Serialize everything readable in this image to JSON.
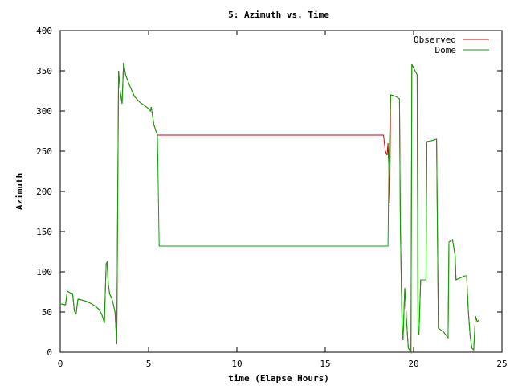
{
  "chart_data": {
    "type": "line",
    "title": "5: Azimuth vs. Time",
    "xlabel": "time (Elapse Hours)",
    "ylabel": "Azimuth",
    "xlim": [
      0,
      25
    ],
    "ylim": [
      0,
      400
    ],
    "x_ticks": [
      0,
      5,
      10,
      15,
      20,
      25
    ],
    "y_ticks": [
      0,
      50,
      100,
      150,
      200,
      250,
      300,
      350,
      400
    ],
    "grid": false,
    "legend_position": "top-right",
    "series": [
      {
        "name": "Observed",
        "color": "#cc0000",
        "points": [
          [
            0.05,
            60
          ],
          [
            0.3,
            59
          ],
          [
            0.4,
            76
          ],
          [
            0.55,
            74
          ],
          [
            0.7,
            73
          ],
          [
            0.8,
            51
          ],
          [
            0.9,
            48
          ],
          [
            1.0,
            66
          ],
          [
            1.2,
            65
          ],
          [
            1.5,
            63
          ],
          [
            1.8,
            60
          ],
          [
            2.0,
            57
          ],
          [
            2.2,
            53
          ],
          [
            2.35,
            47
          ],
          [
            2.45,
            40
          ],
          [
            2.5,
            36
          ],
          [
            2.55,
            75
          ],
          [
            2.6,
            110
          ],
          [
            2.65,
            112
          ],
          [
            2.72,
            85
          ],
          [
            2.8,
            72
          ],
          [
            2.9,
            68
          ],
          [
            3.0,
            60
          ],
          [
            3.1,
            50
          ],
          [
            3.15,
            30
          ],
          [
            3.2,
            10
          ],
          [
            3.3,
            350
          ],
          [
            3.4,
            323
          ],
          [
            3.5,
            309
          ],
          [
            3.58,
            360
          ],
          [
            3.7,
            345
          ],
          [
            3.9,
            333
          ],
          [
            4.2,
            318
          ],
          [
            4.5,
            311
          ],
          [
            5.0,
            303
          ],
          [
            5.1,
            300
          ],
          [
            5.15,
            305
          ],
          [
            5.3,
            283
          ],
          [
            5.4,
            276
          ],
          [
            5.5,
            270
          ],
          [
            5.85,
            270
          ],
          [
            18.3,
            270
          ],
          [
            18.4,
            250
          ],
          [
            18.5,
            245
          ],
          [
            18.55,
            260
          ],
          [
            18.6,
            230
          ],
          [
            18.65,
            185
          ],
          [
            18.7,
            320
          ],
          [
            19.0,
            318
          ],
          [
            19.2,
            315
          ],
          [
            19.25,
            160
          ],
          [
            19.3,
            90
          ],
          [
            19.35,
            30
          ],
          [
            19.4,
            15
          ],
          [
            19.5,
            80
          ],
          [
            19.6,
            40
          ],
          [
            19.7,
            5
          ],
          [
            19.8,
            2
          ],
          [
            19.85,
            0
          ],
          [
            19.9,
            358
          ],
          [
            20.2,
            345
          ],
          [
            20.25,
            25
          ],
          [
            20.3,
            22
          ],
          [
            20.4,
            90
          ],
          [
            20.5,
            90
          ],
          [
            20.7,
            90
          ],
          [
            20.75,
            262
          ],
          [
            21.0,
            263
          ],
          [
            21.3,
            265
          ],
          [
            21.4,
            30
          ],
          [
            21.7,
            25
          ],
          [
            21.95,
            18
          ],
          [
            22.0,
            137
          ],
          [
            22.2,
            140
          ],
          [
            22.35,
            120
          ],
          [
            22.4,
            90
          ],
          [
            22.6,
            92
          ],
          [
            22.9,
            95
          ],
          [
            23.0,
            95
          ],
          [
            23.1,
            50
          ],
          [
            23.2,
            20
          ],
          [
            23.3,
            5
          ],
          [
            23.4,
            3
          ],
          [
            23.5,
            45
          ],
          [
            23.6,
            38
          ],
          [
            23.7,
            40
          ]
        ]
      },
      {
        "name": "Dome",
        "color": "#00aa00",
        "points": [
          [
            0.05,
            60
          ],
          [
            0.3,
            59
          ],
          [
            0.4,
            76
          ],
          [
            0.55,
            74
          ],
          [
            0.7,
            73
          ],
          [
            0.8,
            51
          ],
          [
            0.9,
            48
          ],
          [
            1.0,
            66
          ],
          [
            1.2,
            65
          ],
          [
            1.5,
            63
          ],
          [
            1.8,
            60
          ],
          [
            2.0,
            57
          ],
          [
            2.2,
            53
          ],
          [
            2.35,
            47
          ],
          [
            2.45,
            40
          ],
          [
            2.5,
            36
          ],
          [
            2.55,
            75
          ],
          [
            2.6,
            110
          ],
          [
            2.65,
            112
          ],
          [
            2.72,
            85
          ],
          [
            2.8,
            72
          ],
          [
            2.9,
            68
          ],
          [
            3.0,
            60
          ],
          [
            3.1,
            50
          ],
          [
            3.15,
            30
          ],
          [
            3.2,
            10
          ],
          [
            3.3,
            350
          ],
          [
            3.4,
            323
          ],
          [
            3.5,
            309
          ],
          [
            3.58,
            360
          ],
          [
            3.7,
            345
          ],
          [
            3.9,
            333
          ],
          [
            4.2,
            318
          ],
          [
            4.5,
            311
          ],
          [
            5.0,
            303
          ],
          [
            5.1,
            300
          ],
          [
            5.15,
            305
          ],
          [
            5.3,
            283
          ],
          [
            5.4,
            276
          ],
          [
            5.5,
            270
          ],
          [
            5.6,
            132
          ],
          [
            18.55,
            132
          ],
          [
            18.6,
            230
          ],
          [
            18.7,
            320
          ],
          [
            19.0,
            318
          ],
          [
            19.2,
            315
          ],
          [
            19.25,
            160
          ],
          [
            19.3,
            90
          ],
          [
            19.35,
            30
          ],
          [
            19.4,
            15
          ],
          [
            19.5,
            80
          ],
          [
            19.6,
            40
          ],
          [
            19.7,
            5
          ],
          [
            19.8,
            2
          ],
          [
            19.85,
            0
          ],
          [
            19.9,
            358
          ],
          [
            20.2,
            345
          ],
          [
            20.25,
            25
          ],
          [
            20.3,
            22
          ],
          [
            20.4,
            90
          ],
          [
            20.5,
            90
          ],
          [
            20.7,
            90
          ],
          [
            20.75,
            262
          ],
          [
            21.0,
            263
          ],
          [
            21.3,
            265
          ],
          [
            21.4,
            30
          ],
          [
            21.7,
            25
          ],
          [
            21.95,
            18
          ],
          [
            22.0,
            137
          ],
          [
            22.2,
            140
          ],
          [
            22.35,
            120
          ],
          [
            22.4,
            90
          ],
          [
            22.6,
            92
          ],
          [
            22.9,
            95
          ],
          [
            23.0,
            95
          ],
          [
            23.1,
            50
          ],
          [
            23.2,
            20
          ],
          [
            23.3,
            5
          ],
          [
            23.4,
            3
          ],
          [
            23.5,
            45
          ],
          [
            23.6,
            38
          ],
          [
            23.7,
            40
          ]
        ]
      }
    ]
  }
}
